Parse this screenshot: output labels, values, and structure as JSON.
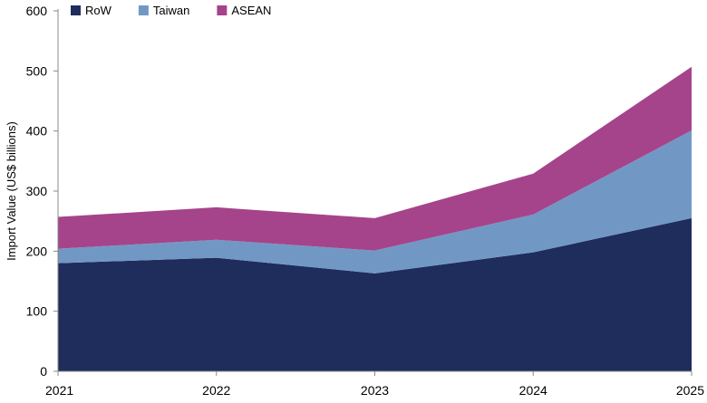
{
  "chart_data": {
    "type": "area",
    "stacked": true,
    "title": "",
    "xlabel": "",
    "ylabel": "Import Value (US$ billions)",
    "x": [
      "2021",
      "2022",
      "2023",
      "2024",
      "2025"
    ],
    "ylim": [
      0,
      600
    ],
    "yticks": [
      0,
      100,
      200,
      300,
      400,
      500,
      600
    ],
    "grid": false,
    "legend_position": "top-left",
    "series": [
      {
        "name": "RoW",
        "color": "#1f2d5c",
        "values": [
          180,
          189,
          163,
          198,
          255
        ]
      },
      {
        "name": "Taiwan",
        "color": "#7198c5",
        "values": [
          24,
          30,
          38,
          63,
          146
        ]
      },
      {
        "name": "ASEAN",
        "color": "#a5448a",
        "values": [
          53,
          54,
          54,
          68,
          106
        ]
      }
    ]
  }
}
